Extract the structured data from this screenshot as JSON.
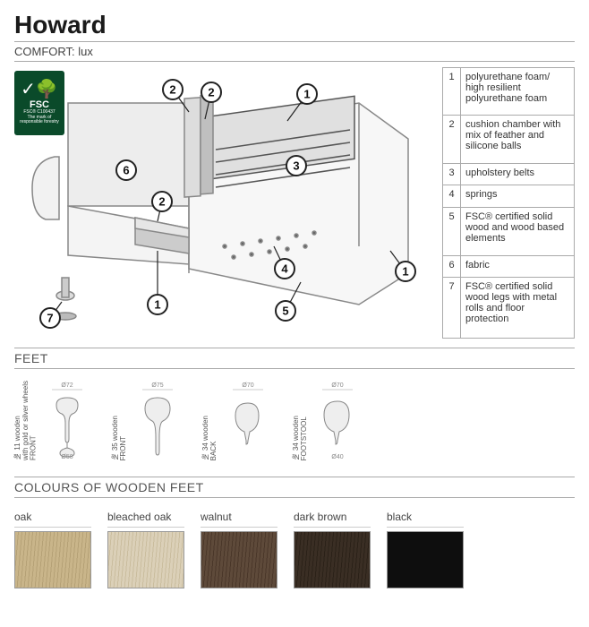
{
  "title": "Howard",
  "comfort_label": "COMFORT: lux",
  "fsc": {
    "label": "FSC",
    "code": "FSC® C100437",
    "tag": "The mark of responsible forestry"
  },
  "diagram": {
    "callouts": [
      {
        "n": "1"
      },
      {
        "n": "2"
      },
      {
        "n": "3"
      },
      {
        "n": "4"
      },
      {
        "n": "5"
      },
      {
        "n": "6"
      },
      {
        "n": "7"
      },
      {
        "n": "1"
      },
      {
        "n": "1"
      },
      {
        "n": "2"
      },
      {
        "n": "2"
      }
    ]
  },
  "parts": [
    {
      "n": "1",
      "desc": "polyurethane foam/ high resilient polyurethane foam"
    },
    {
      "n": "2",
      "desc": "cushion chamber with mix of feather and silicone balls"
    },
    {
      "n": "3",
      "desc": "upholstery belts"
    },
    {
      "n": "4",
      "desc": "springs"
    },
    {
      "n": "5",
      "desc": "FSC® certified solid wood and wood based elements"
    },
    {
      "n": "6",
      "desc": "fabric"
    },
    {
      "n": "7",
      "desc": "FSC® certified solid wood legs with metal rolls and floor protection"
    }
  ],
  "feet_header": "FEET",
  "feet": [
    {
      "label": "№ 11 wooden\nwith gold or silver wheels\nFRONT",
      "top": "Ø72",
      "side": "",
      "bot": "Ø58"
    },
    {
      "label": "№ 35 wooden\nFRONT",
      "top": "Ø75",
      "side": "",
      "bot": ""
    },
    {
      "label": "№ 34 wooden\nBACK",
      "top": "Ø70",
      "side": "",
      "bot": ""
    },
    {
      "label": "№ 34 wooden\nFOOTSTOOL",
      "top": "Ø70",
      "side": "",
      "bot": "Ø40"
    }
  ],
  "colors_header": "COLOURS OF WOODEN FEET",
  "colors": [
    {
      "name": "oak",
      "hex": "#c9b58a",
      "grain": "#b5a176"
    },
    {
      "name": "bleached oak",
      "hex": "#dbd0b8",
      "grain": "#cabd9e"
    },
    {
      "name": "walnut",
      "hex": "#5e4a3a",
      "grain": "#4a3729"
    },
    {
      "name": "dark brown",
      "hex": "#3a2e24",
      "grain": "#2b2118"
    },
    {
      "name": "black",
      "hex": "#0e0e0e",
      "grain": "#0e0e0e"
    }
  ]
}
